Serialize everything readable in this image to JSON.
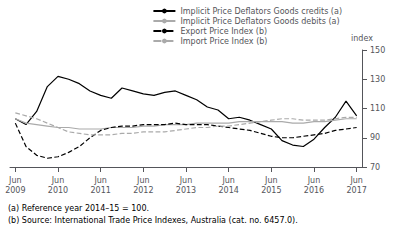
{
  "chart_data": {
    "type": "line",
    "ylabel": "index",
    "annotations": [
      "(a) Reference year 2014–15 = 100.",
      "(b) Source: International Trade Price Indexes, Australia (cat. no. 6457.0)."
    ],
    "categories": [
      "Jun\n2009",
      null,
      null,
      null,
      "Jun\n2010",
      null,
      null,
      null,
      "Jun\n2011",
      null,
      null,
      null,
      "Jun\n2012",
      null,
      null,
      null,
      "Jun\n2013",
      null,
      null,
      null,
      "Jun\n2014",
      null,
      null,
      null,
      "Jun\n2015",
      null,
      null,
      null,
      "Jun\n2016",
      null,
      null,
      null,
      "Jun\n2017"
    ],
    "series": [
      {
        "name": "Implicit Price Deflators Goods credits (a)",
        "color": "#000000",
        "line_style": "solid",
        "values": [
          103,
          99,
          108,
          125,
          132,
          130,
          127,
          122,
          119,
          117,
          124,
          122,
          120,
          119,
          121,
          122,
          119,
          116,
          111,
          109,
          103,
          104,
          102,
          99,
          96,
          88,
          85,
          84,
          89,
          97,
          104,
          115,
          105
        ]
      },
      {
        "name": "Implicit Price Deflators Goods debits (a)",
        "color": "#aaaaaa",
        "line_style": "solid",
        "values": [
          103,
          100,
          99,
          98,
          97,
          97,
          96,
          96,
          96,
          97,
          97,
          97,
          98,
          98,
          99,
          99,
          99,
          100,
          100,
          100,
          100,
          101,
          101,
          101,
          101,
          101,
          100,
          100,
          101,
          101,
          102,
          103,
          103
        ]
      },
      {
        "name": "Export Price Index (b)",
        "color": "#000000",
        "line_style": "dashed",
        "values": [
          100,
          84,
          78,
          76,
          77,
          80,
          84,
          90,
          95,
          97,
          98,
          98,
          99,
          99,
          99,
          100,
          99,
          99,
          99,
          98,
          97,
          96,
          95,
          93,
          91,
          90,
          90,
          91,
          92,
          93,
          95,
          96,
          97
        ]
      },
      {
        "name": "Import Price Index (b)",
        "color": "#aaaaaa",
        "line_style": "dashed",
        "values": [
          107,
          105,
          103,
          100,
          97,
          94,
          93,
          92,
          92,
          92,
          93,
          93,
          94,
          94,
          94,
          95,
          96,
          97,
          97,
          98,
          98,
          99,
          100,
          101,
          102,
          103,
          103,
          102,
          102,
          102,
          103,
          104,
          104
        ]
      }
    ],
    "ylim": [
      70,
      150
    ],
    "yticks": [
      70,
      90,
      110,
      130,
      150
    ],
    "grid": false,
    "legend": "upper right"
  }
}
